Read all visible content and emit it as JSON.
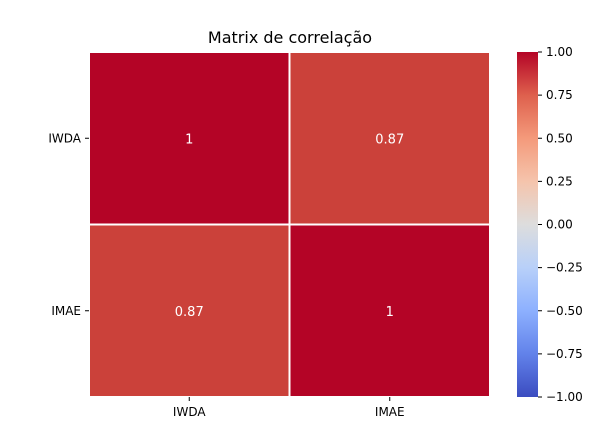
{
  "chart_data": {
    "type": "heatmap",
    "title": "Matrix de correlação",
    "x_categories": [
      "IWDA",
      "IMAE"
    ],
    "y_categories": [
      "IWDA",
      "IMAE"
    ],
    "values": [
      [
        1,
        0.87
      ],
      [
        0.87,
        1
      ]
    ],
    "cell_labels": [
      [
        "1",
        "0.87"
      ],
      [
        "0.87",
        "1"
      ]
    ],
    "colormap": "coolwarm",
    "colors": {
      "low": "#3b4cc0",
      "mid": "#dddddd",
      "high": "#b40426"
    },
    "colorbar": {
      "vmin": -1.0,
      "vmax": 1.0,
      "ticks": [
        1.0,
        0.75,
        0.5,
        0.25,
        0.0,
        -0.25,
        -0.5,
        -0.75,
        -1.0
      ],
      "tick_labels": [
        "1.00",
        "0.75",
        "0.50",
        "0.25",
        "0.00",
        "−0.25",
        "−0.50",
        "−0.75",
        "−1.00"
      ]
    }
  }
}
